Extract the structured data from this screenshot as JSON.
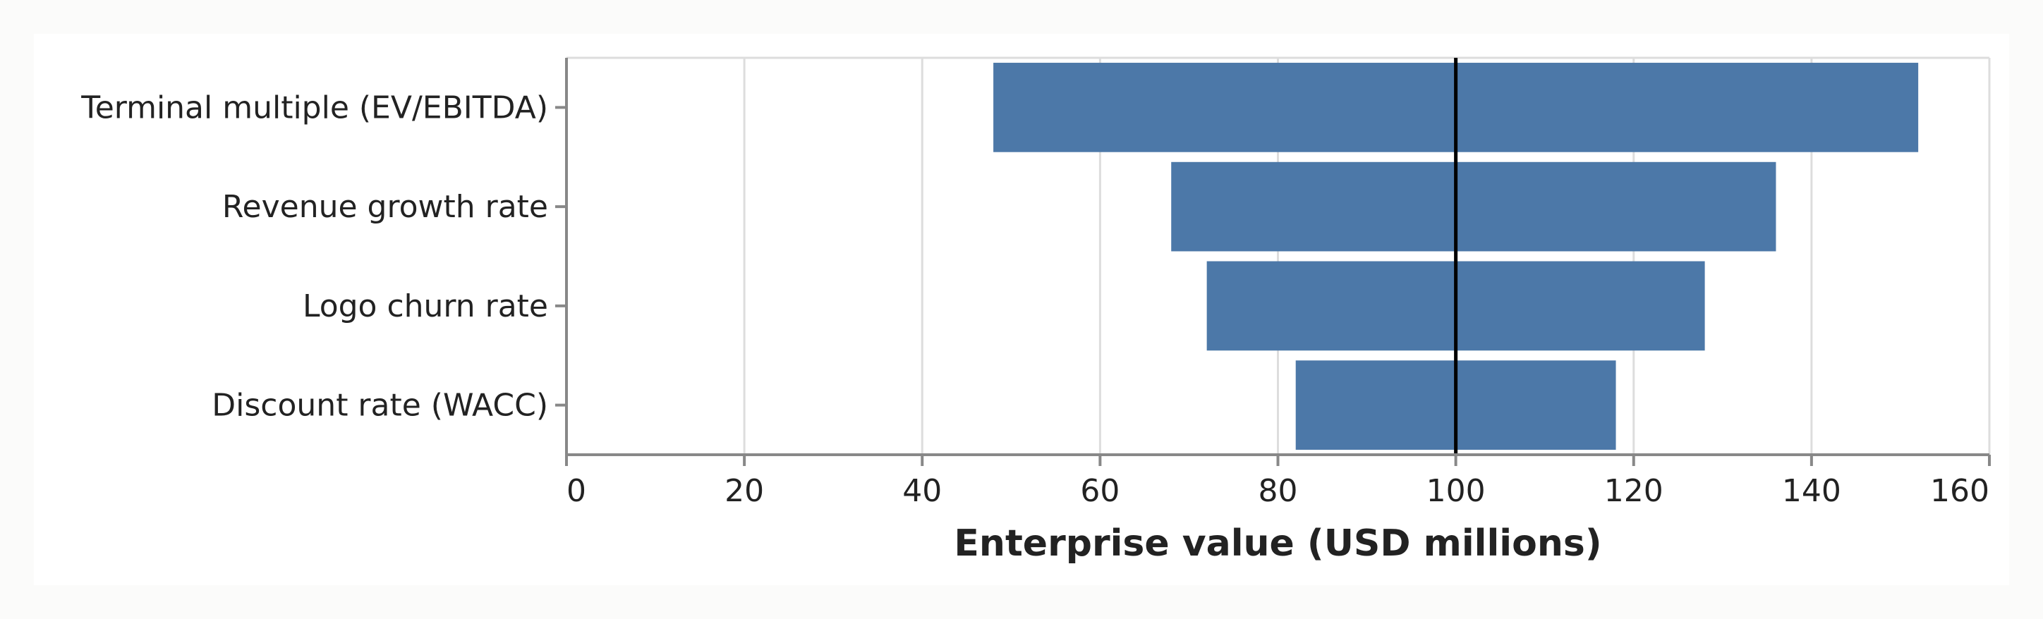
{
  "chart_data": {
    "type": "bar",
    "subtype": "tornado",
    "categories": [
      "Terminal multiple (EV/EBITDA)",
      "Revenue growth rate",
      "Logo churn rate",
      "Discount rate (WACC)"
    ],
    "series": [
      {
        "values": [
          [
            48,
            152
          ],
          [
            68,
            136
          ],
          [
            72,
            128
          ],
          [
            82,
            118
          ]
        ]
      }
    ],
    "baseline": 100,
    "title": "",
    "xlabel": "Enterprise value (USD millions)",
    "ylabel": "",
    "xlim": [
      0,
      160
    ],
    "xticks": [
      0,
      20,
      40,
      60,
      80,
      100,
      120,
      140,
      160
    ],
    "grid": true,
    "legend": "none",
    "colors": {
      "bar": "#4c78a8",
      "baseline": "#000000",
      "grid": "#dddddd",
      "axis": "#888888",
      "text": "#222222"
    }
  }
}
